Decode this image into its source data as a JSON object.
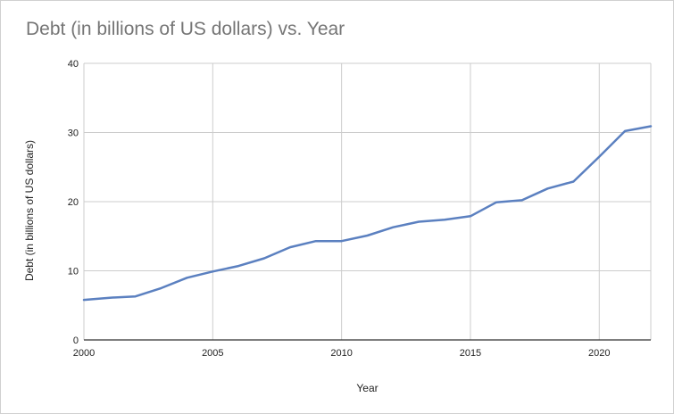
{
  "chart_data": {
    "type": "line",
    "title": "Debt (in billions of US dollars) vs. Year",
    "xlabel": "Year",
    "ylabel": "Debt (in billions of US dollars)",
    "xlim": [
      2000,
      2022
    ],
    "ylim": [
      0,
      40
    ],
    "x_ticks": [
      2000,
      2005,
      2010,
      2015,
      2020
    ],
    "y_ticks": [
      0,
      10,
      20,
      30,
      40
    ],
    "grid": true,
    "legend": "none",
    "series": [
      {
        "color": "#5b80c0",
        "x": [
          2000,
          2001,
          2002,
          2003,
          2004,
          2005,
          2006,
          2007,
          2008,
          2009,
          2010,
          2011,
          2012,
          2013,
          2014,
          2015,
          2016,
          2017,
          2018,
          2019,
          2020,
          2021,
          2022
        ],
        "y": [
          5.8,
          6.1,
          6.3,
          7.5,
          9.0,
          9.9,
          10.7,
          11.8,
          13.4,
          14.3,
          14.3,
          15.1,
          16.3,
          17.1,
          17.4,
          17.9,
          19.9,
          20.2,
          21.9,
          22.9,
          26.5,
          30.2,
          30.9
        ]
      }
    ]
  }
}
